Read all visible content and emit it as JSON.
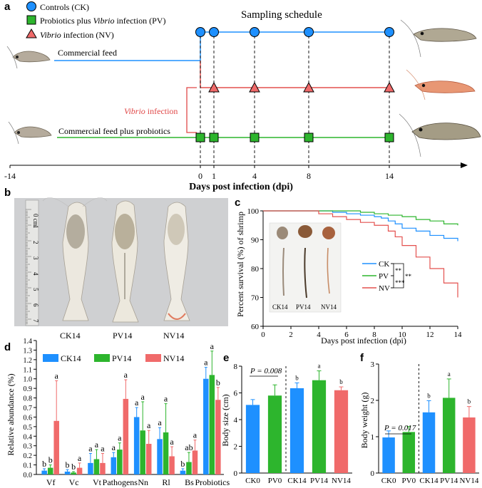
{
  "colors": {
    "ck": "#1e90ff",
    "pv": "#2db52d",
    "nv": "#f06a6a",
    "nv_line": "#e4504e",
    "infect": "#e04848",
    "shrimp_bg": "#d7d0c4",
    "photo_bg": "#cfd0d2"
  },
  "panel_a": {
    "letter": "a",
    "legend": [
      {
        "label": "Controls (CK)",
        "marker": "circle"
      },
      {
        "pre": "Probiotics plus ",
        "italic": "Vibrio",
        "post": " infection (PV)",
        "marker": "square"
      },
      {
        "italic": "Vibrio",
        "post": " infection (NV)",
        "marker": "triangle"
      }
    ],
    "title": "Sampling schedule",
    "feed_label": "Commercial feed",
    "probiotic_feed_label": "Commercial feed plus probiotics",
    "infection_italic": "Vibrio",
    "infection_rest": " infection",
    "axis_ticks": [
      "-14",
      "0",
      "1",
      "4",
      "8",
      "14"
    ],
    "axis_label": "Days post infection (dpi)"
  },
  "panel_b": {
    "letter": "b",
    "labels": [
      "CK14",
      "PV14",
      "NV14"
    ],
    "ruler_marks": [
      "0 cm",
      "1",
      "2",
      "3",
      "4",
      "5",
      "6",
      "7"
    ]
  },
  "panel_c": {
    "letter": "c",
    "ylabel": "Percent survival (%) of shrimp",
    "xlabel": "Days post infection (dpi)",
    "yticks": [
      "60",
      "70",
      "80",
      "90",
      "100"
    ],
    "xticks": [
      "0",
      "2",
      "4",
      "6",
      "8",
      "10",
      "12",
      "14"
    ],
    "legend": [
      "CK",
      "PV",
      "NV"
    ],
    "sig": [
      "**",
      "**",
      "***"
    ],
    "inset_labels": [
      "CK14",
      "PV14",
      "NV14"
    ],
    "chart_data": {
      "type": "line",
      "x_range": [
        0,
        14
      ],
      "y_range": [
        60,
        100
      ],
      "series": [
        {
          "name": "CK",
          "x": [
            0,
            3,
            5,
            6,
            7,
            8,
            8.5,
            9,
            9.5,
            10,
            11,
            12,
            13,
            14
          ],
          "y": [
            100,
            100,
            99.5,
            99,
            98.5,
            98,
            97.5,
            96.5,
            95.5,
            94,
            93,
            91.5,
            90.5,
            89.5
          ]
        },
        {
          "name": "PV",
          "x": [
            0,
            3,
            6,
            7,
            8,
            9,
            10,
            11,
            12,
            13,
            14
          ],
          "y": [
            100,
            100,
            100,
            99.5,
            99,
            98.5,
            98,
            97,
            96.5,
            95.5,
            95
          ]
        },
        {
          "name": "NV",
          "x": [
            0,
            3,
            4,
            5,
            6,
            7,
            8,
            9,
            9.5,
            10,
            11,
            12,
            13,
            14
          ],
          "y": [
            100,
            100,
            99,
            98,
            97,
            96,
            95,
            93,
            91,
            88,
            84,
            80,
            75,
            70
          ]
        }
      ]
    }
  },
  "panel_d": {
    "letter": "d",
    "ylabel": "Relative abundance (%)",
    "yticks": [
      "0.0",
      "0.1",
      "0.2",
      "0.3",
      "0.4",
      "0.5",
      "0.6",
      "0.7",
      "0.8",
      "0.9",
      "1.0",
      "1.1",
      "1.2",
      "1.3",
      "1.4"
    ],
    "legend": [
      "CK14",
      "PV14",
      "NV14"
    ],
    "chart_data": {
      "type": "bar",
      "categories": [
        "Vf",
        "Vc",
        "Vt",
        "Pathogens",
        "Nn",
        "Rl",
        "Bs",
        "Probiotics"
      ],
      "ylim": [
        0,
        1.4
      ],
      "series": [
        {
          "name": "CK14",
          "values": [
            0.04,
            0.03,
            0.12,
            0.18,
            0.6,
            0.37,
            0.04,
            1.0
          ],
          "errors": [
            0.02,
            0.02,
            0.1,
            0.05,
            0.1,
            0.12,
            0.02,
            0.12
          ],
          "letters": [
            "b",
            "b",
            "a",
            "a",
            "a",
            "a",
            "b",
            "a"
          ]
        },
        {
          "name": "PV14",
          "values": [
            0.07,
            0.02,
            0.16,
            0.26,
            0.46,
            0.44,
            0.13,
            1.04
          ],
          "errors": [
            0.03,
            0.01,
            0.1,
            0.07,
            0.3,
            0.3,
            0.1,
            0.25
          ],
          "letters": [
            "b",
            "b",
            "a",
            "a",
            "a",
            "a",
            "ab",
            "a"
          ]
        },
        {
          "name": "NV14",
          "values": [
            0.56,
            0.07,
            0.12,
            0.79,
            0.32,
            0.19,
            0.25,
            0.78
          ],
          "errors": [
            0.42,
            0.05,
            0.1,
            0.2,
            0.14,
            0.1,
            0.11,
            0.13
          ],
          "letters": [
            "a",
            "a",
            "a",
            "a",
            "a",
            "a",
            "a",
            "b"
          ]
        }
      ]
    }
  },
  "panel_e": {
    "letter": "e",
    "ylabel": "Body size (cm)",
    "yticks": [
      "0",
      "2",
      "4",
      "6",
      "8"
    ],
    "pval": "P = 0.008",
    "chart_data": {
      "type": "bar",
      "categories": [
        "CK0",
        "PV0",
        "CK14",
        "PV14",
        "NV14"
      ],
      "ylim": [
        0,
        8
      ],
      "values": [
        5.1,
        5.8,
        6.35,
        6.95,
        6.2
      ],
      "errors": [
        0.4,
        0.8,
        0.4,
        0.7,
        0.25
      ],
      "colors": [
        "ck",
        "pv",
        "ck",
        "pv",
        "nv"
      ],
      "letters": [
        "",
        "",
        "b",
        "a",
        "b"
      ]
    }
  },
  "panel_f": {
    "letter": "f",
    "ylabel": "Body weight (g)",
    "yticks": [
      "0",
      "1",
      "2",
      "3"
    ],
    "pval": "P = 0.017",
    "chart_data": {
      "type": "bar",
      "categories": [
        "CK0",
        "PV0",
        "CK14",
        "PV14",
        "NV14"
      ],
      "ylim": [
        0,
        3
      ],
      "values": [
        0.98,
        1.13,
        1.67,
        2.07,
        1.53
      ],
      "errors": [
        0.18,
        0.15,
        0.32,
        0.52,
        0.3
      ],
      "colors": [
        "ck",
        "pv",
        "ck",
        "pv",
        "nv"
      ],
      "letters": [
        "",
        "",
        "b",
        "a",
        "b"
      ]
    }
  }
}
